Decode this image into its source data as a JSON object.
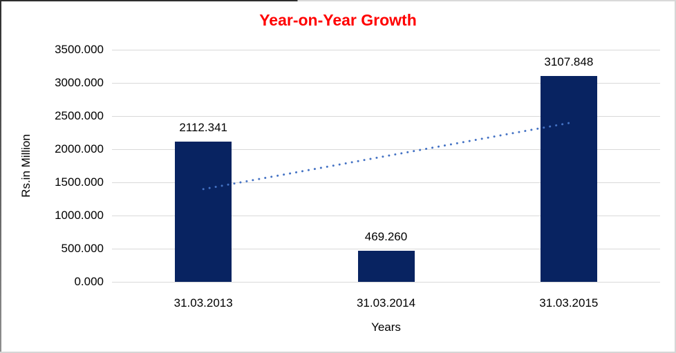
{
  "chart_data": {
    "type": "bar",
    "title": "Year-on-Year Growth",
    "xlabel": "Years",
    "ylabel": "Rs.in Million",
    "categories": [
      "31.03.2013",
      "31.03.2014",
      "31.03.2015"
    ],
    "values": [
      2112.341,
      469.26,
      3107.848
    ],
    "value_labels": [
      "2112.341",
      "469.260",
      "3107.848"
    ],
    "ylim": [
      0,
      3500
    ],
    "ytick_step": 500,
    "ytick_labels": [
      "0.000",
      "500.000",
      "1000.000",
      "1500.000",
      "2000.000",
      "2500.000",
      "3000.000",
      "3500.000"
    ],
    "grid": true,
    "legend": "none",
    "trendline": {
      "kind": "linear",
      "style": "dotted",
      "start_value": 1398.7,
      "end_value": 2394.2
    },
    "colors": {
      "bar": "#082361",
      "trendline": "#4472C4",
      "title": "#FF0000",
      "gridline": "#D9D9D9",
      "text": "#000000"
    }
  }
}
